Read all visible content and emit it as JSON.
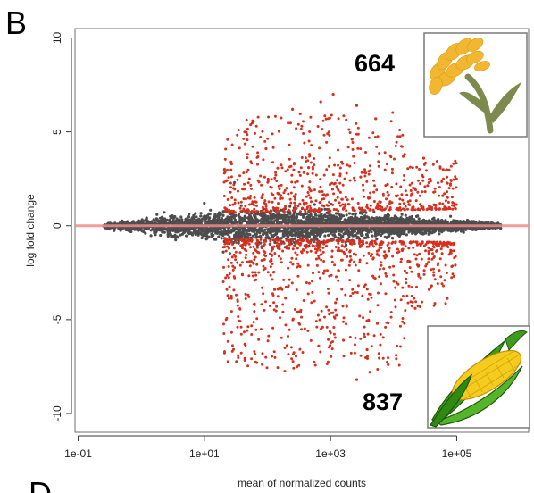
{
  "panel_letters": {
    "top": "B",
    "bottom": "D"
  },
  "chart_data": {
    "type": "scatter",
    "title": "",
    "xlabel": "mean of normalized counts",
    "ylabel": "log fold change",
    "x_scale": "log10",
    "xlim": [
      0.1,
      1000000
    ],
    "ylim": [
      -11,
      10.5
    ],
    "x_ticks": [
      0.1,
      10,
      1000,
      100000
    ],
    "x_tick_labels": [
      "1e-01",
      "1e+01",
      "1e+03",
      "1e+05"
    ],
    "y_ticks": [
      -10,
      -5,
      0,
      5,
      10
    ],
    "y_tick_labels": [
      "-10",
      "-5",
      "0",
      "5",
      "10"
    ],
    "reference_line": {
      "y": 0,
      "color": "#f08b8b"
    },
    "series": [
      {
        "color": "#4d4d4d"
      },
      {
        "color": "#d7301f"
      }
    ],
    "red_points_sample": [
      [
        250,
        6.2
      ],
      [
        700,
        6.6
      ],
      [
        1100,
        7.0
      ],
      [
        2600,
        6.4
      ],
      [
        5200,
        5.7
      ],
      [
        900,
        4.9
      ],
      [
        2200,
        4.6
      ],
      [
        15000,
        3.8
      ],
      [
        30000,
        3.6
      ],
      [
        95,
        4.1
      ],
      [
        450,
        3.1
      ],
      [
        3000,
        2.6
      ],
      [
        8000,
        2.2
      ],
      [
        60000,
        1.6
      ],
      [
        1500,
        3.4
      ],
      [
        300,
        -4.6
      ],
      [
        750,
        -5.4
      ],
      [
        1600,
        -6.1
      ],
      [
        3800,
        -6.6
      ],
      [
        8200,
        -7.4
      ],
      [
        2600,
        -8.2
      ],
      [
        4200,
        -7.8
      ],
      [
        1200,
        -4.1
      ],
      [
        650,
        -6.4
      ],
      [
        11000,
        -6.9
      ],
      [
        40000,
        -3.2
      ],
      [
        130,
        -3.4
      ],
      [
        5500,
        -5.2
      ],
      [
        22000,
        -4.4
      ],
      [
        95000,
        -2.1
      ]
    ],
    "grey_points_sample": [
      [
        0.3,
        0.0
      ],
      [
        2,
        0.4
      ],
      [
        3,
        -0.6
      ],
      [
        10,
        1.2
      ],
      [
        20,
        -1.4
      ],
      [
        50,
        0.8
      ],
      [
        200,
        -0.5
      ],
      [
        1000,
        0.3
      ],
      [
        10000,
        -0.2
      ],
      [
        100000,
        0.1
      ],
      [
        300000,
        0.0
      ],
      [
        30,
        2.3
      ],
      [
        40,
        -2.6
      ],
      [
        150,
        1.7
      ],
      [
        80000,
        0.5
      ]
    ],
    "annotations": [
      {
        "text": "664",
        "location": "upper",
        "icon": "rice-plant-icon"
      },
      {
        "text": "837",
        "location": "lower",
        "icon": "corn-cob-icon"
      }
    ]
  }
}
